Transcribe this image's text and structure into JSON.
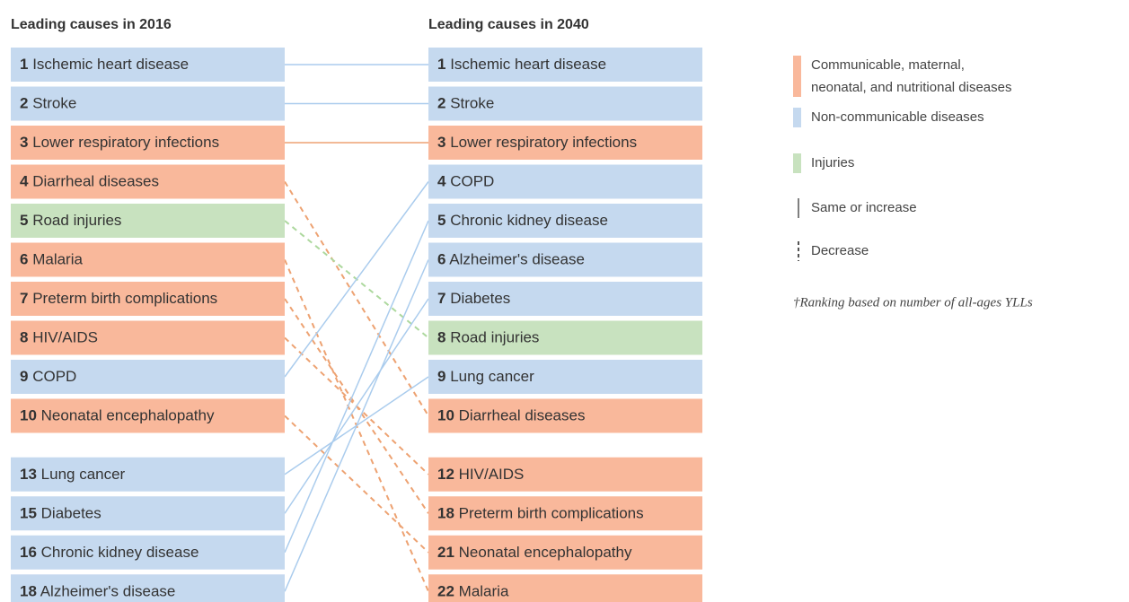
{
  "left": {
    "title": "Leading causes in 2016",
    "items": [
      {
        "rank": "1",
        "name": "Ischemic heart disease",
        "color": "#c5d9ef"
      },
      {
        "rank": "2",
        "name": "Stroke",
        "color": "#c5d9ef"
      },
      {
        "rank": "3",
        "name": "Lower respiratory infections",
        "color": "#f9b89b"
      },
      {
        "rank": "4",
        "name": "Diarrheal diseases",
        "color": "#f9b89b"
      },
      {
        "rank": "5",
        "name": "Road injuries",
        "color": "#c8e2bf"
      },
      {
        "rank": "6",
        "name": "Malaria",
        "color": "#f9b89b"
      },
      {
        "rank": "7",
        "name": "Preterm birth complications",
        "color": "#f9b89b"
      },
      {
        "rank": "8",
        "name": "HIV/AIDS",
        "color": "#f9b89b"
      },
      {
        "rank": "9",
        "name": "COPD",
        "color": "#c5d9ef"
      },
      {
        "rank": "10",
        "name": "Neonatal encephalopathy",
        "color": "#f9b89b"
      },
      {
        "rank": "13",
        "name": "Lung cancer",
        "color": "#c5d9ef"
      },
      {
        "rank": "15",
        "name": "Diabetes",
        "color": "#c5d9ef"
      },
      {
        "rank": "16",
        "name": "Chronic kidney disease",
        "color": "#c5d9ef"
      },
      {
        "rank": "18",
        "name": "Alzheimer's disease",
        "color": "#c5d9ef"
      }
    ]
  },
  "right": {
    "title": "Leading causes in 2040",
    "items": [
      {
        "rank": "1",
        "name": "Ischemic heart disease",
        "color": "#c5d9ef"
      },
      {
        "rank": "2",
        "name": "Stroke",
        "color": "#c5d9ef"
      },
      {
        "rank": "3",
        "name": "Lower respiratory infections",
        "color": "#f9b89b"
      },
      {
        "rank": "4",
        "name": "COPD",
        "color": "#c5d9ef"
      },
      {
        "rank": "5",
        "name": "Chronic kidney disease",
        "color": "#c5d9ef"
      },
      {
        "rank": "6",
        "name": "Alzheimer's disease",
        "color": "#c5d9ef"
      },
      {
        "rank": "7",
        "name": "Diabetes",
        "color": "#c5d9ef"
      },
      {
        "rank": "8",
        "name": "Road injuries",
        "color": "#c8e2bf"
      },
      {
        "rank": "9",
        "name": "Lung cancer",
        "color": "#c5d9ef"
      },
      {
        "rank": "10",
        "name": "Diarrheal diseases",
        "color": "#f9b89b"
      },
      {
        "rank": "12",
        "name": "HIV/AIDS",
        "color": "#f9b89b"
      },
      {
        "rank": "18",
        "name": "Preterm birth complications",
        "color": "#f9b89b"
      },
      {
        "rank": "21",
        "name": "Neonatal encephalopathy",
        "color": "#f9b89b"
      },
      {
        "rank": "22",
        "name": "Malaria",
        "color": "#f9b89b"
      }
    ]
  },
  "legend": {
    "groups": [
      {
        "label_lines": [
          "Communicable, maternal,",
          "neonatal, and nutritional diseases"
        ],
        "color": "#f9b89b"
      },
      {
        "label_lines": [
          "Non-communicable diseases"
        ],
        "color": "#c5d9ef"
      },
      {
        "label_lines": [
          "Injuries"
        ],
        "color": "#c8e2bf"
      }
    ],
    "same_or_increase": "Same or increase",
    "decrease": "Decrease"
  },
  "footnote": "†Ranking based on number of all-ages YLLs"
}
